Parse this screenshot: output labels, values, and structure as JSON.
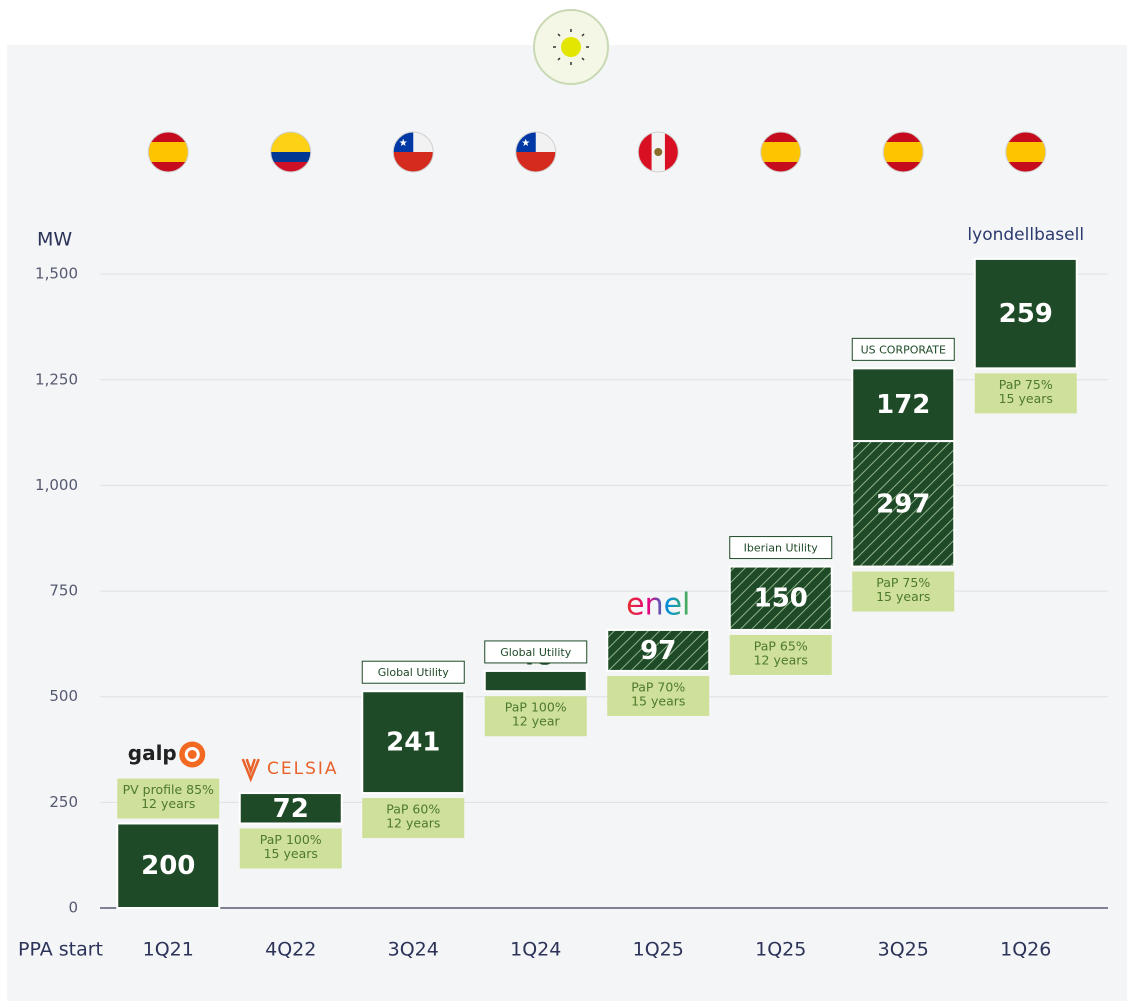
{
  "chart_data": {
    "type": "waterfall",
    "y_label": "MW",
    "x_label": "PPA start",
    "categories": [
      "1Q21",
      "4Q22",
      "3Q24",
      "1Q24",
      "1Q25",
      "1Q25",
      "3Q25",
      "1Q26"
    ],
    "ylim": [
      0,
      1550
    ],
    "yticks": [
      0,
      250,
      500,
      750,
      {
        "value": 1000,
        "label": "1,000"
      },
      {
        "value": 1250,
        "label": "1,250"
      },
      {
        "value": 1500,
        "label": "1,500"
      }
    ],
    "grid": true,
    "color": "#1f4a27",
    "note_color": "#cfe09a",
    "bars": [
      {
        "segments": [
          {
            "value": 200,
            "fill": "solid"
          }
        ],
        "notes": [
          "PV profile 85%",
          "12 years"
        ],
        "logo": "galp"
      },
      {
        "segments": [
          {
            "value": 72,
            "fill": "solid"
          }
        ],
        "notes": [
          "PaP 100%",
          "15 years"
        ],
        "logo": "CELSIA"
      },
      {
        "segments": [
          {
            "value": 241,
            "fill": "solid"
          }
        ],
        "tag": "Global Utility",
        "notes": [
          "PaP 60%",
          "12 years"
        ]
      },
      {
        "segments": [
          {
            "value": 48,
            "fill": "solid"
          }
        ],
        "tag": "Global Utility",
        "notes": [
          "PaP 100%",
          "12 year"
        ]
      },
      {
        "segments": [
          {
            "value": 97,
            "fill": "hatched"
          }
        ],
        "notes": [
          "PaP 70%",
          "15 years"
        ],
        "logo": "enel"
      },
      {
        "segments": [
          {
            "value": 150,
            "fill": "hatched"
          }
        ],
        "tag": "Iberian Utility",
        "notes": [
          "PaP 65%",
          "12 years"
        ]
      },
      {
        "segments": [
          {
            "value": 297,
            "fill": "hatched"
          },
          {
            "value": 172,
            "fill": "solid"
          }
        ],
        "tag": "US CORPORATE",
        "notes": [
          "PaP 75%",
          "15 years"
        ]
      },
      {
        "segments": [
          {
            "value": 259,
            "fill": "solid"
          }
        ],
        "notes": [
          "PaP 75%",
          "15 years"
        ],
        "logo": "lyondellbasell"
      }
    ]
  }
}
